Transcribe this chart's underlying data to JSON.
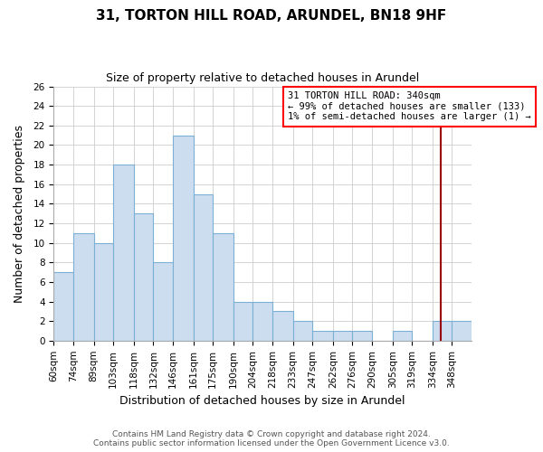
{
  "title": "31, TORTON HILL ROAD, ARUNDEL, BN18 9HF",
  "subtitle": "Size of property relative to detached houses in Arundel",
  "xlabel": "Distribution of detached houses by size in Arundel",
  "ylabel": "Number of detached properties",
  "bar_labels": [
    "60sqm",
    "74sqm",
    "89sqm",
    "103sqm",
    "118sqm",
    "132sqm",
    "146sqm",
    "161sqm",
    "175sqm",
    "190sqm",
    "204sqm",
    "218sqm",
    "233sqm",
    "247sqm",
    "262sqm",
    "276sqm",
    "290sqm",
    "305sqm",
    "319sqm",
    "334sqm",
    "348sqm"
  ],
  "bar_heights": [
    7,
    11,
    10,
    18,
    13,
    8,
    21,
    15,
    11,
    4,
    4,
    3,
    2,
    1,
    1,
    1,
    0,
    1,
    0,
    2,
    2
  ],
  "bar_color": "#ccddf0",
  "bar_edge_color": "#7bafd4",
  "ylim": [
    0,
    26
  ],
  "yticks": [
    0,
    2,
    4,
    6,
    8,
    10,
    12,
    14,
    16,
    18,
    20,
    22,
    24,
    26
  ],
  "property_line_color": "#990000",
  "annotation_title": "31 TORTON HILL ROAD: 340sqm",
  "annotation_line1": "← 99% of detached houses are smaller (133)",
  "annotation_line2": "1% of semi-detached houses are larger (1) →",
  "footer_line1": "Contains HM Land Registry data © Crown copyright and database right 2024.",
  "footer_line2": "Contains public sector information licensed under the Open Government Licence v3.0.",
  "bin_edges": [
    60,
    74,
    89,
    103,
    118,
    132,
    146,
    161,
    175,
    190,
    204,
    218,
    233,
    247,
    262,
    276,
    290,
    305,
    319,
    334,
    348,
    362
  ],
  "background_color": "#ffffff",
  "grid_color": "#cccccc",
  "title_fontsize": 11,
  "subtitle_fontsize": 9,
  "axis_label_fontsize": 9,
  "tick_fontsize": 7.5,
  "footer_fontsize": 6.5
}
